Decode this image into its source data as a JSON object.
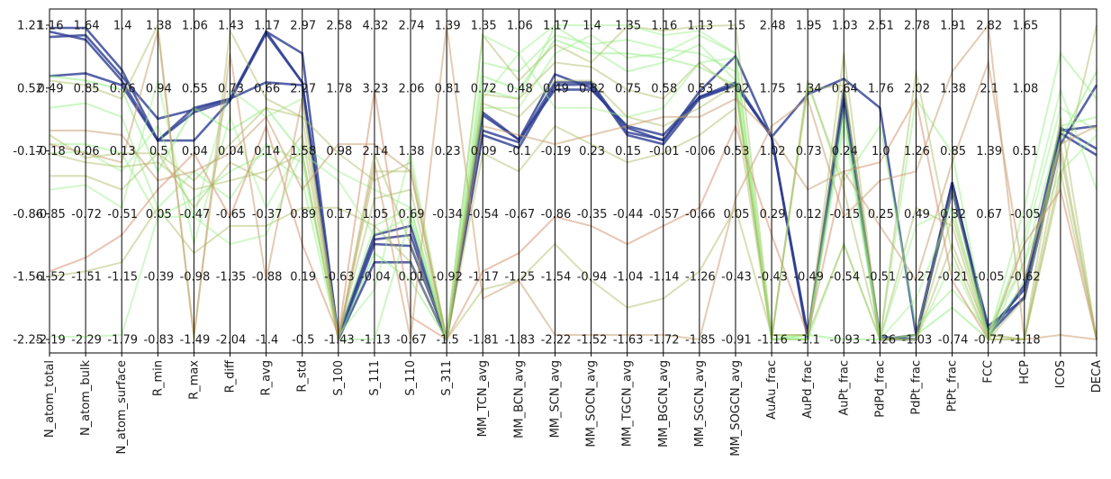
{
  "chart_data": {
    "type": "parallel_coordinates",
    "axes": [
      "N_atom_total",
      "N_atom_bulk",
      "N_atom_surface",
      "R_min",
      "R_max",
      "R_diff",
      "R_avg",
      "R_std",
      "S_100",
      "S_111",
      "S_110",
      "S_311",
      "MM_TCN_avg",
      "MM_BCN_avg",
      "MM_SCN_avg",
      "MM_SOCN_avg",
      "MM_TGCN_avg",
      "MM_BGCN_avg",
      "MM_SGCN_avg",
      "MM_SOGCN_avg",
      "AuAu_frac",
      "AuPd_frac",
      "AuPt_frac",
      "PdPd_frac",
      "PdPt_frac",
      "PtPt_frac",
      "FCC",
      "HCP",
      "ICOS",
      "DECA"
    ],
    "shared_ticks": [
      "1.21",
      "0.52",
      "-0.17",
      "-0.86",
      "-1.56",
      "-2.25"
    ],
    "shared_range": [
      -2.25,
      1.21
    ],
    "axis_ticks": [
      [
        "1.16",
        "0.49",
        "-0.18",
        "-0.85",
        "-1.52",
        "-2.19"
      ],
      [
        "1.64",
        "0.85",
        "0.06",
        "-0.72",
        "-1.51",
        "-2.29"
      ],
      [
        "1.4",
        "0.76",
        "0.13",
        "-0.51",
        "-1.15",
        "-1.79"
      ],
      [
        "1.38",
        "0.94",
        "0.5",
        "0.05",
        "-0.39",
        "-0.83"
      ],
      [
        "1.06",
        "0.55",
        "0.04",
        "-0.47",
        "-0.98",
        "-1.49"
      ],
      [
        "1.43",
        "0.73",
        "0.04",
        "-0.65",
        "-1.35",
        "-2.04"
      ],
      [
        "1.17",
        "0.66",
        "0.14",
        "-0.37",
        "-0.88",
        "-1.4"
      ],
      [
        "2.97",
        "2.27",
        "1.58",
        "0.89",
        "0.19",
        "-0.5"
      ],
      [
        "2.58",
        "1.78",
        "0.98",
        "0.17",
        "-0.63",
        "-1.43"
      ],
      [
        "4.32",
        "3.23",
        "2.14",
        "1.05",
        "-0.04",
        "-1.13"
      ],
      [
        "2.74",
        "2.06",
        "1.38",
        "0.69",
        "0.01",
        "-0.67"
      ],
      [
        "1.39",
        "0.81",
        "0.23",
        "-0.34",
        "-0.92",
        "-1.5"
      ],
      [
        "1.35",
        "0.72",
        "0.09",
        "-0.54",
        "-1.17",
        "-1.81"
      ],
      [
        "1.06",
        "0.48",
        "-0.1",
        "-0.67",
        "-1.25",
        "-1.83"
      ],
      [
        "1.17",
        "0.49",
        "-0.19",
        "-0.86",
        "-1.54",
        "-2.22"
      ],
      [
        "1.4",
        "0.82",
        "0.23",
        "-0.35",
        "-0.94",
        "-1.52"
      ],
      [
        "1.35",
        "0.75",
        "0.15",
        "-0.44",
        "-1.04",
        "-1.63"
      ],
      [
        "1.16",
        "0.58",
        "-0.01",
        "-0.57",
        "-1.14",
        "-1.72"
      ],
      [
        "1.13",
        "0.53",
        "-0.06",
        "-0.66",
        "-1.26",
        "-1.85"
      ],
      [
        "1.5",
        "1.02",
        "0.53",
        "0.05",
        "-0.43",
        "-0.91"
      ],
      [
        "2.48",
        "1.75",
        "1.02",
        "0.29",
        "-0.43",
        "-1.16"
      ],
      [
        "1.95",
        "1.34",
        "0.73",
        "0.12",
        "-0.49",
        "-1.1"
      ],
      [
        "1.03",
        "0.64",
        "0.24",
        "-0.15",
        "-0.54",
        "-0.93"
      ],
      [
        "2.51",
        "1.76",
        "1.0",
        "0.25",
        "-0.51",
        "-1.26"
      ],
      [
        "2.78",
        "2.02",
        "1.26",
        "0.49",
        "-0.27",
        "-1.03"
      ],
      [
        "1.91",
        "1.38",
        "0.85",
        "0.32",
        "-0.21",
        "-0.74"
      ],
      [
        "2.82",
        "2.1",
        "1.39",
        "0.67",
        "-0.05",
        "-0.77"
      ],
      [
        "1.65",
        "1.08",
        "0.51",
        "-0.05",
        "-0.62",
        "-1.18"
      ],
      [
        "",
        "",
        "",
        "",
        "",
        ""
      ],
      [
        "",
        "",
        "",
        "",
        "",
        ""
      ]
    ],
    "series": [
      {
        "color": "#2d3d91",
        "alpha": 0.8,
        "values": [
          1.18,
          1.18,
          0.72,
          -0.06,
          0.3,
          0.4,
          1.14,
          0.9,
          -2.25,
          -1.4,
          -1.4,
          -2.25,
          0.22,
          -0.05,
          0.67,
          0.52,
          0.08,
          -0.06,
          0.48,
          0.87,
          -0.02,
          -2.25,
          0.35,
          -2.25,
          -2.2,
          -0.52,
          -2.15,
          -1.7,
          0.02,
          -0.22
        ]
      },
      {
        "color": "#2d3d91",
        "alpha": 0.8,
        "values": [
          1.14,
          1.05,
          0.6,
          -0.06,
          -0.06,
          0.38,
          1.14,
          0.58,
          -2.25,
          -1.2,
          -1.22,
          -2.22,
          0.0,
          -0.14,
          0.55,
          0.56,
          0.0,
          -0.1,
          0.4,
          0.55,
          -0.02,
          0.45,
          0.62,
          0.3,
          -2.2,
          -0.62,
          -2.1,
          -1.8,
          -0.1,
          0.55
        ]
      },
      {
        "color": "#2d3d91",
        "alpha": 0.8,
        "values": [
          1.08,
          1.1,
          0.65,
          0.18,
          0.28,
          0.4,
          0.58,
          0.55,
          -2.22,
          -1.15,
          -1.1,
          -2.25,
          0.25,
          -0.05,
          0.5,
          0.5,
          0.1,
          0.0,
          0.42,
          0.55,
          -0.02,
          -2.2,
          0.4,
          -2.25,
          -2.25,
          -0.55,
          -2.22,
          -1.65,
          0.08,
          -0.15
        ]
      },
      {
        "color": "#2d3d91",
        "alpha": 0.8,
        "values": [
          0.65,
          0.68,
          0.55,
          -0.06,
          0.25,
          0.38,
          1.12,
          0.58,
          -2.2,
          -1.1,
          -1.0,
          -2.25,
          0.05,
          -0.08,
          0.58,
          0.58,
          0.03,
          -0.05,
          0.42,
          0.58,
          -0.02,
          -2.22,
          0.5,
          -2.22,
          -2.25,
          -0.52,
          -2.2,
          -1.78,
          0.05,
          0.1
        ]
      },
      {
        "color": "#88ee77",
        "alpha": 0.5,
        "values": [
          0.65,
          0.6,
          0.5,
          -0.4,
          0.3,
          0.05,
          0.3,
          -0.2,
          -2.25,
          -1.3,
          -1.6,
          -2.25,
          0.65,
          0.5,
          1.05,
          0.9,
          0.9,
          0.85,
          0.75,
          0.55,
          -2.25,
          -2.2,
          -2.25,
          -2.25,
          -2.2,
          -1.9,
          -2.25,
          -1.6,
          -0.05,
          0.7
        ]
      },
      {
        "color": "#99f088",
        "alpha": 0.5,
        "values": [
          0.3,
          0.35,
          0.2,
          -0.8,
          -0.4,
          -0.7,
          -0.1,
          -0.3,
          -2.2,
          -1.0,
          -0.8,
          -2.25,
          0.8,
          0.7,
          1.1,
          1.0,
          1.05,
          0.95,
          0.9,
          0.7,
          -2.25,
          0.55,
          -0.5,
          0.1,
          -2.1,
          -1.7,
          -2.15,
          -1.4,
          0.1,
          0.2
        ]
      },
      {
        "color": "#99f088",
        "alpha": 0.5,
        "values": [
          -0.1,
          -0.1,
          -0.2,
          -0.9,
          -0.7,
          -0.4,
          -0.2,
          -0.5,
          -2.25,
          -2.25,
          -0.9,
          -2.25,
          0.5,
          0.4,
          1.2,
          0.95,
          0.7,
          0.8,
          1.0,
          0.6,
          -2.2,
          -2.25,
          0.2,
          -2.25,
          0.4,
          -0.2,
          -2.25,
          -0.8,
          0.9,
          0.4
        ]
      },
      {
        "color": "#99f088",
        "alpha": 0.45,
        "values": [
          -0.6,
          -0.55,
          -0.8,
          0.6,
          -1.2,
          0.2,
          -0.8,
          -0.1,
          -0.4,
          -0.6,
          -0.8,
          -2.25,
          0.4,
          0.9,
          0.3,
          0.3,
          0.2,
          0.3,
          0.8,
          0.85,
          -2.25,
          -2.2,
          0.1,
          -2.25,
          -1.8,
          -0.8,
          -2.2,
          -1.2,
          0.3,
          0.05
        ]
      },
      {
        "color": "#99f088",
        "alpha": 0.45,
        "values": [
          -0.2,
          -0.18,
          -0.4,
          0.1,
          -0.9,
          0.5,
          0.2,
          0.4,
          -2.2,
          -1.7,
          -0.2,
          -2.25,
          0.3,
          0.3,
          0.9,
          1.1,
          0.85,
          0.9,
          1.1,
          0.9,
          -2.25,
          -2.25,
          -1.2,
          -2.25,
          -2.25,
          -1.4,
          -2.25,
          -1.4,
          -0.4,
          0.0
        ]
      },
      {
        "color": "#a8b85e",
        "alpha": 0.45,
        "values": [
          -0.2,
          -0.3,
          -0.35,
          -0.3,
          -0.6,
          -0.5,
          -0.4,
          -0.2,
          -2.25,
          -0.4,
          -0.4,
          -2.25,
          0.35,
          0.2,
          0.6,
          0.6,
          0.2,
          0.1,
          0.3,
          0.55,
          -2.25,
          -2.25,
          0.6,
          -2.25,
          -2.2,
          -0.6,
          -2.25,
          -1.8,
          -0.1,
          -2.25
        ]
      },
      {
        "color": "#a8b85e",
        "alpha": 0.45,
        "values": [
          -0.45,
          -0.45,
          -0.6,
          -0.2,
          -0.8,
          -0.3,
          -0.5,
          0.0,
          -2.2,
          -0.7,
          -0.6,
          -2.25,
          0.45,
          0.4,
          0.8,
          0.75,
          0.5,
          0.4,
          0.8,
          0.5,
          -2.22,
          0.5,
          0.55,
          -2.25,
          -2.25,
          -1.2,
          -2.2,
          -2.25,
          -0.2,
          -2.25
        ]
      },
      {
        "color": "#a8b85e",
        "alpha": 0.45,
        "values": [
          0.6,
          0.55,
          0.4,
          1.21,
          -2.25,
          1.15,
          0.4,
          0.2,
          -2.25,
          -0.2,
          -1.2,
          -2.2,
          1.1,
          0.6,
          1.0,
          0.8,
          1.2,
          1.15,
          1.2,
          1.21,
          -2.2,
          -2.2,
          0.9,
          -2.25,
          0.7,
          -1.3,
          -2.25,
          -2.25,
          -0.5,
          1.21
        ]
      },
      {
        "color": "#a8b85e",
        "alpha": 0.45,
        "values": [
          -1.56,
          -1.5,
          -1.4,
          -0.8,
          -1.3,
          -1.0,
          -1.0,
          -0.8,
          -0.8,
          -1.0,
          -1.4,
          -2.25,
          -1.7,
          -1.6,
          -1.2,
          -1.6,
          -1.9,
          -1.8,
          -1.5,
          -0.8,
          -2.2,
          -2.2,
          -1.2,
          -2.25,
          -2.25,
          -0.9,
          -2.2,
          -2.25,
          -0.4,
          -2.25
        ]
      },
      {
        "color": "#c89a6a",
        "alpha": 0.5,
        "values": [
          -0.1,
          -0.2,
          -0.3,
          1.15,
          -2.2,
          0.9,
          -1.6,
          0.4,
          -2.25,
          -0.3,
          -2.25,
          1.21,
          -1.8,
          -1.6,
          -2.2,
          -2.2,
          -2.2,
          -2.2,
          -2.25,
          -0.7,
          0.1,
          0.4,
          -0.9,
          -0.5,
          -0.4,
          0.7,
          1.21,
          -2.25,
          -2.2,
          -2.25
        ]
      },
      {
        "color": "#d48a66",
        "alpha": 0.5,
        "values": [
          -1.5,
          -1.35,
          -1.1,
          -0.6,
          -0.2,
          -0.9,
          0.1,
          -1.2,
          -2.2,
          0.5,
          -2.0,
          -2.25,
          -1.5,
          -1.3,
          -0.9,
          -1.0,
          -1.2,
          -1.0,
          -0.8,
          0.1,
          -1.1,
          -2.2,
          -0.4,
          -0.3,
          0.4,
          -1.6,
          -2.25,
          -1.2,
          -0.6,
          -2.25
        ]
      },
      {
        "color": "#c89a6a",
        "alpha": 0.5,
        "values": [
          0.05,
          0.05,
          0.0,
          -0.5,
          -0.4,
          -0.2,
          0.2,
          -0.6,
          -0.1,
          -0.1,
          -0.4,
          -2.25,
          0.1,
          0.0,
          -0.1,
          0.0,
          0.1,
          0.2,
          0.2,
          0.4,
          0.0,
          -0.6,
          -0.4,
          -1.0,
          -1.6,
          -0.3,
          0.8,
          -1.6,
          -0.1,
          0.1
        ]
      },
      {
        "color": "#a8b85e",
        "alpha": 0.45,
        "values": [
          0.0,
          -0.25,
          -0.2,
          -0.2,
          -0.5,
          -0.1,
          0.3,
          0.2,
          -0.2,
          -0.5,
          -0.3,
          -2.25,
          -0.2,
          -0.4,
          0.1,
          -0.1,
          -0.3,
          -0.2,
          0.0,
          0.3,
          -2.25,
          0.6,
          -0.6,
          -2.25,
          -0.8,
          -1.0,
          -2.25,
          -2.25,
          0.2,
          -2.25
        ]
      },
      {
        "color": "#99f088",
        "alpha": 0.45,
        "values": [
          -2.22,
          -2.22,
          -2.2,
          -0.9,
          -0.9,
          -1.2,
          -1.1,
          -0.2,
          -0.5,
          -1.1,
          -0.9,
          -2.25,
          1.1,
          0.9,
          1.21,
          1.21,
          1.21,
          1.1,
          1.15,
          0.9,
          -2.25,
          -2.25,
          0.3,
          -2.25,
          -1.0,
          -0.8,
          -2.25,
          -1.1,
          0.5,
          -0.6
        ]
      }
    ]
  }
}
